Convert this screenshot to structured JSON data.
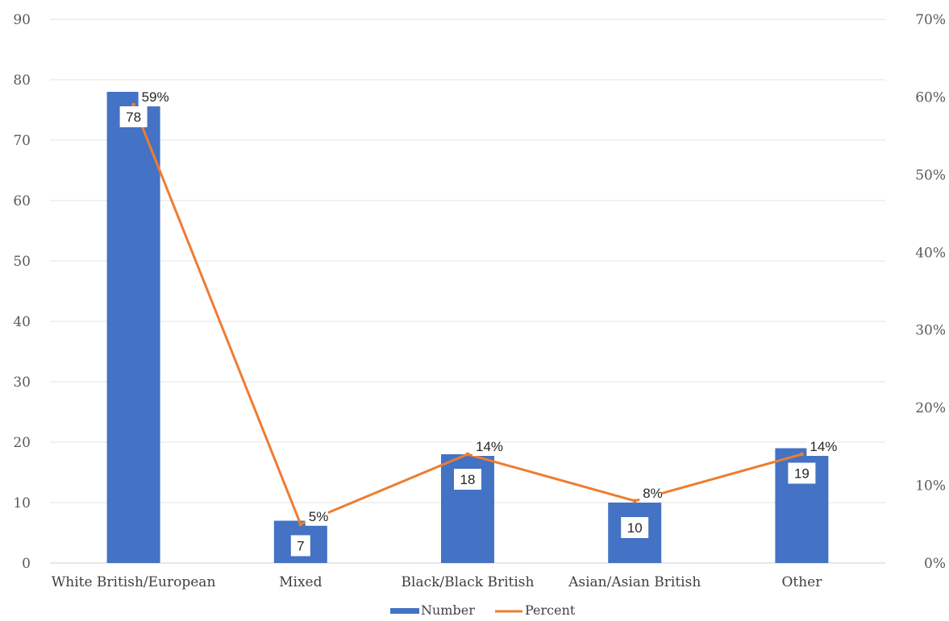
{
  "chart_data": {
    "type": "bar",
    "categories": [
      "White British/European",
      "Mixed",
      "Black/Black British",
      "Asian/Asian British",
      "Other"
    ],
    "series": [
      {
        "name": "Number",
        "type": "bar",
        "axis": "left",
        "values": [
          78,
          7,
          18,
          10,
          19
        ],
        "labels": [
          "78",
          "7",
          "18",
          "10",
          "19"
        ],
        "color": "#4472C4"
      },
      {
        "name": "Percent",
        "type": "line",
        "axis": "right",
        "values": [
          59,
          5,
          14,
          8,
          14
        ],
        "labels": [
          "59%",
          "5%",
          "14%",
          "8%",
          "14%"
        ],
        "color": "#ED7D31"
      }
    ],
    "y_left": {
      "min": 0,
      "max": 90,
      "step": 10,
      "ticks": [
        "0",
        "10",
        "20",
        "30",
        "40",
        "50",
        "60",
        "70",
        "80",
        "90"
      ]
    },
    "y_right": {
      "min": 0,
      "max": 70,
      "step": 10,
      "ticks": [
        "0%",
        "10%",
        "20%",
        "30%",
        "40%",
        "50%",
        "60%",
        "70%"
      ]
    },
    "grid": true,
    "legend_position": "bottom",
    "title": "",
    "xlabel": "",
    "ylabel": ""
  }
}
